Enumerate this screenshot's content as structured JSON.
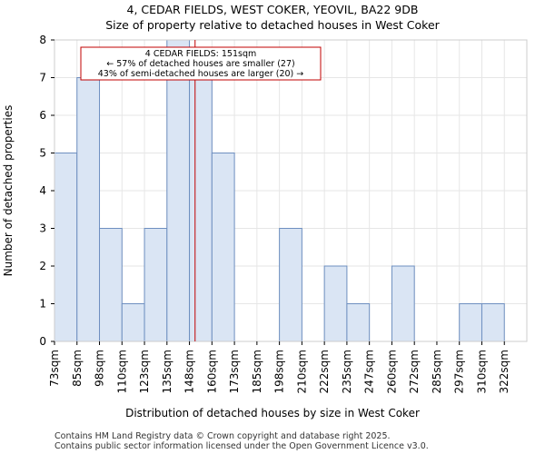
{
  "chart_data": {
    "type": "bar",
    "title": "4, CEDAR FIELDS, WEST COKER, YEOVIL, BA22 9DB",
    "subtitle": "Size of property relative to detached houses in West Coker",
    "xlabel": "Distribution of detached houses by size in West Coker",
    "ylabel": "Number of detached properties",
    "categories": [
      "73sqm",
      "85sqm",
      "98sqm",
      "110sqm",
      "123sqm",
      "135sqm",
      "148sqm",
      "160sqm",
      "173sqm",
      "185sqm",
      "198sqm",
      "210sqm",
      "222sqm",
      "235sqm",
      "247sqm",
      "260sqm",
      "272sqm",
      "285sqm",
      "297sqm",
      "310sqm",
      "322sqm"
    ],
    "values": [
      5,
      7,
      3,
      1,
      3,
      8,
      7,
      5,
      0,
      0,
      3,
      0,
      2,
      1,
      0,
      2,
      0,
      0,
      1,
      1,
      0
    ],
    "ylim": [
      0,
      8
    ],
    "yticks": [
      0,
      1,
      2,
      3,
      4,
      5,
      6,
      7,
      8
    ],
    "grid": true,
    "bar_color": "#dae5f4",
    "bar_edge_color": "#6e8fc0",
    "marker_value": 151,
    "marker_color": "#c00000",
    "annotation": {
      "line1": "4 CEDAR FIELDS: 151sqm",
      "line2": "← 57% of detached houses are smaller (27)",
      "line3": "43% of semi-detached houses are larger (20) →"
    }
  },
  "footer": {
    "line1": "Contains HM Land Registry data © Crown copyright and database right 2025.",
    "line2": "Contains public sector information licensed under the Open Government Licence v3.0."
  }
}
